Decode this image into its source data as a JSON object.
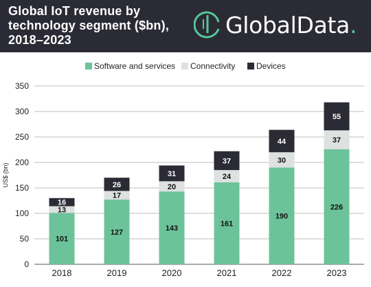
{
  "header": {
    "title_lines": [
      "Global IoT revenue by",
      "technology segment ($bn),",
      "2018–2023"
    ],
    "logo_text": "GlobalData",
    "logo_dot": "."
  },
  "colors": {
    "header_bg": "#2b2b36",
    "software": "#6cc39a",
    "connectivity": "#dde1df",
    "devices": "#2b2b36",
    "grid": "#bcbcbc"
  },
  "chart_data": {
    "type": "bar",
    "stacked": true,
    "title": "Global IoT revenue by technology segment ($bn), 2018–2023",
    "ylabel": "US$ (bn)",
    "xlabel": "",
    "ylim": [
      0,
      350
    ],
    "yticks": [
      0,
      50,
      100,
      150,
      200,
      250,
      300,
      350
    ],
    "grid": true,
    "legend_position": "top-center",
    "categories": [
      "2018",
      "2019",
      "2020",
      "2021",
      "2022",
      "2023"
    ],
    "series": [
      {
        "name": "Software and services",
        "color": "#6cc39a",
        "values": [
          101,
          127,
          143,
          161,
          190,
          226
        ]
      },
      {
        "name": "Connectivity",
        "color": "#dde1df",
        "values": [
          13,
          17,
          20,
          24,
          30,
          37
        ]
      },
      {
        "name": "Devices",
        "color": "#2b2b36",
        "values": [
          16,
          26,
          31,
          37,
          44,
          55
        ]
      }
    ]
  }
}
